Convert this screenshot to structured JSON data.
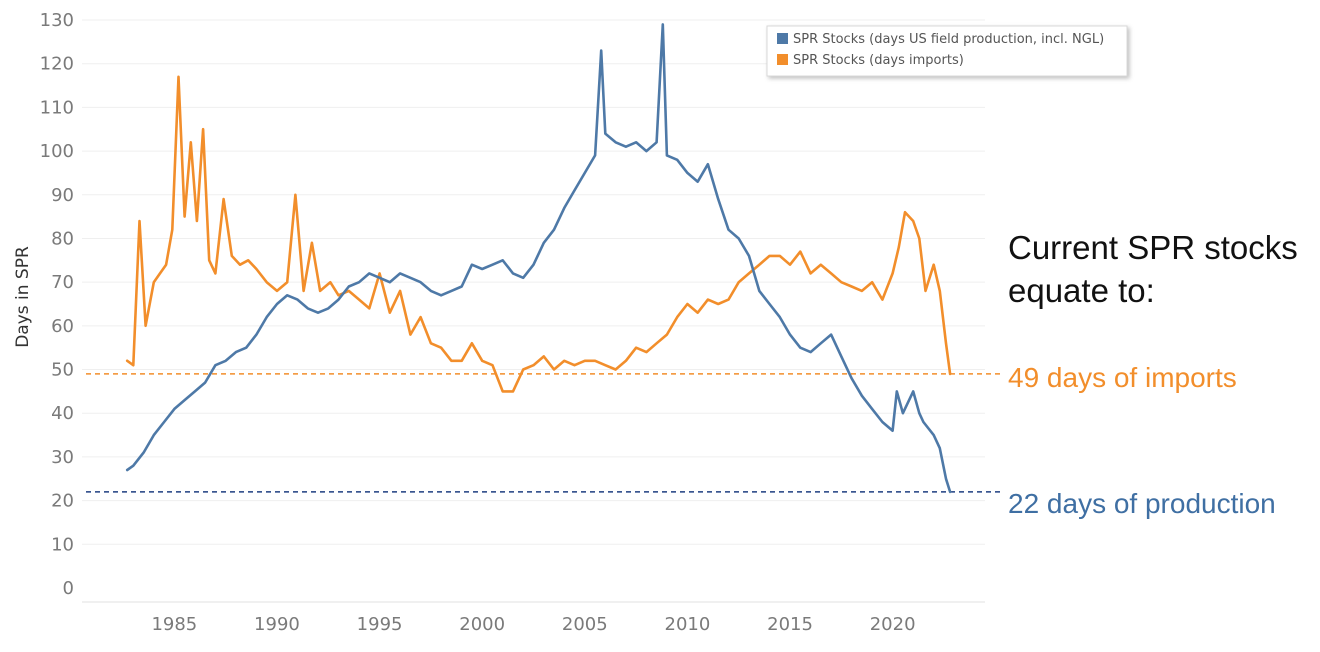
{
  "chart_data": {
    "type": "line",
    "ylabel": "Days in SPR",
    "xlabel": "",
    "ylim": [
      0,
      130
    ],
    "y_ticks": [
      0,
      10,
      20,
      30,
      40,
      50,
      60,
      70,
      80,
      90,
      100,
      110,
      120,
      130
    ],
    "x_ticks": [
      1985,
      1990,
      1995,
      2000,
      2005,
      2010,
      2015,
      2020
    ],
    "grid": "horizontal",
    "legend": {
      "placement": "top-right",
      "entries": [
        "SPR Stocks (days US field production, incl. NGL)",
        "SPR Stocks (days imports)"
      ]
    },
    "series": [
      {
        "name": "SPR Stocks (days US field production, incl. NGL)",
        "color": "#4e79a7",
        "x": [
          1982.7,
          1983.0,
          1983.5,
          1984.0,
          1984.5,
          1985.0,
          1985.5,
          1986.0,
          1986.5,
          1987.0,
          1987.5,
          1988.0,
          1988.5,
          1989.0,
          1989.5,
          1990.0,
          1990.5,
          1991.0,
          1991.5,
          1992.0,
          1992.5,
          1993.0,
          1993.5,
          1994.0,
          1994.5,
          1995.0,
          1995.5,
          1996.0,
          1996.5,
          1997.0,
          1997.5,
          1998.0,
          1998.5,
          1999.0,
          1999.5,
          2000.0,
          2000.5,
          2001.0,
          2001.5,
          2002.0,
          2002.5,
          2003.0,
          2003.5,
          2004.0,
          2004.5,
          2005.0,
          2005.5,
          2005.8,
          2006.0,
          2006.5,
          2007.0,
          2007.5,
          2008.0,
          2008.5,
          2008.8,
          2009.0,
          2009.5,
          2010.0,
          2010.5,
          2011.0,
          2011.5,
          2012.0,
          2012.5,
          2013.0,
          2013.5,
          2014.0,
          2014.5,
          2015.0,
          2015.5,
          2016.0,
          2016.5,
          2017.0,
          2017.5,
          2018.0,
          2018.5,
          2019.0,
          2019.5,
          2020.0,
          2020.2,
          2020.5,
          2021.0,
          2021.3,
          2021.5,
          2022.0,
          2022.3,
          2022.6,
          2022.8
        ],
        "values": [
          27,
          28,
          31,
          35,
          38,
          41,
          43,
          45,
          47,
          51,
          52,
          54,
          55,
          58,
          62,
          65,
          67,
          66,
          64,
          63,
          64,
          66,
          69,
          70,
          72,
          71,
          70,
          72,
          71,
          70,
          68,
          67,
          68,
          69,
          74,
          73,
          74,
          75,
          72,
          71,
          74,
          79,
          82,
          87,
          91,
          95,
          99,
          123,
          104,
          102,
          101,
          102,
          100,
          102,
          129,
          99,
          98,
          95,
          93,
          97,
          89,
          82,
          80,
          76,
          68,
          65,
          62,
          58,
          55,
          54,
          56,
          58,
          53,
          48,
          44,
          41,
          38,
          36,
          45,
          40,
          45,
          40,
          38,
          35,
          32,
          25,
          22
        ]
      },
      {
        "name": "SPR Stocks (days imports)",
        "color": "#f28e2b",
        "x": [
          1982.7,
          1983.0,
          1983.3,
          1983.6,
          1984.0,
          1984.3,
          1984.6,
          1984.9,
          1985.2,
          1985.5,
          1985.8,
          1986.1,
          1986.4,
          1986.7,
          1987.0,
          1987.4,
          1987.8,
          1988.2,
          1988.6,
          1989.0,
          1989.5,
          1990.0,
          1990.5,
          1990.9,
          1991.3,
          1991.7,
          1992.1,
          1992.6,
          1993.0,
          1993.5,
          1994.0,
          1994.5,
          1995.0,
          1995.5,
          1996.0,
          1996.5,
          1997.0,
          1997.5,
          1998.0,
          1998.5,
          1999.0,
          1999.5,
          2000.0,
          2000.5,
          2001.0,
          2001.5,
          2002.0,
          2002.5,
          2003.0,
          2003.5,
          2004.0,
          2004.5,
          2005.0,
          2005.5,
          2006.0,
          2006.5,
          2007.0,
          2007.5,
          2008.0,
          2008.5,
          2009.0,
          2009.5,
          2010.0,
          2010.5,
          2011.0,
          2011.5,
          2012.0,
          2012.5,
          2013.0,
          2013.5,
          2014.0,
          2014.5,
          2015.0,
          2015.5,
          2016.0,
          2016.5,
          2017.0,
          2017.5,
          2018.0,
          2018.5,
          2019.0,
          2019.5,
          2020.0,
          2020.3,
          2020.6,
          2021.0,
          2021.3,
          2021.6,
          2022.0,
          2022.3,
          2022.6,
          2022.8
        ],
        "values": [
          52,
          51,
          84,
          60,
          70,
          72,
          74,
          82,
          117,
          85,
          102,
          84,
          105,
          75,
          72,
          89,
          76,
          74,
          75,
          73,
          70,
          68,
          70,
          90,
          68,
          79,
          68,
          70,
          67,
          68,
          66,
          64,
          72,
          63,
          68,
          58,
          62,
          56,
          55,
          52,
          52,
          56,
          52,
          51,
          45,
          45,
          50,
          51,
          53,
          50,
          52,
          51,
          52,
          52,
          51,
          50,
          52,
          55,
          54,
          56,
          58,
          62,
          65,
          63,
          66,
          65,
          66,
          70,
          72,
          74,
          76,
          76,
          74,
          77,
          72,
          74,
          72,
          70,
          69,
          68,
          70,
          66,
          72,
          78,
          86,
          84,
          80,
          68,
          74,
          68,
          56,
          49
        ]
      }
    ],
    "reference_lines": [
      {
        "value": 49,
        "color": "#f28e2b",
        "label": "49 days of imports"
      },
      {
        "value": 22,
        "color": "#1f3f80",
        "label": "22 days of production"
      }
    ],
    "annotations": {
      "headline_line1": "Current SPR stocks",
      "headline_line2": "equate to:",
      "imports_label": "49 days of imports",
      "production_label": "22 days of production"
    }
  }
}
